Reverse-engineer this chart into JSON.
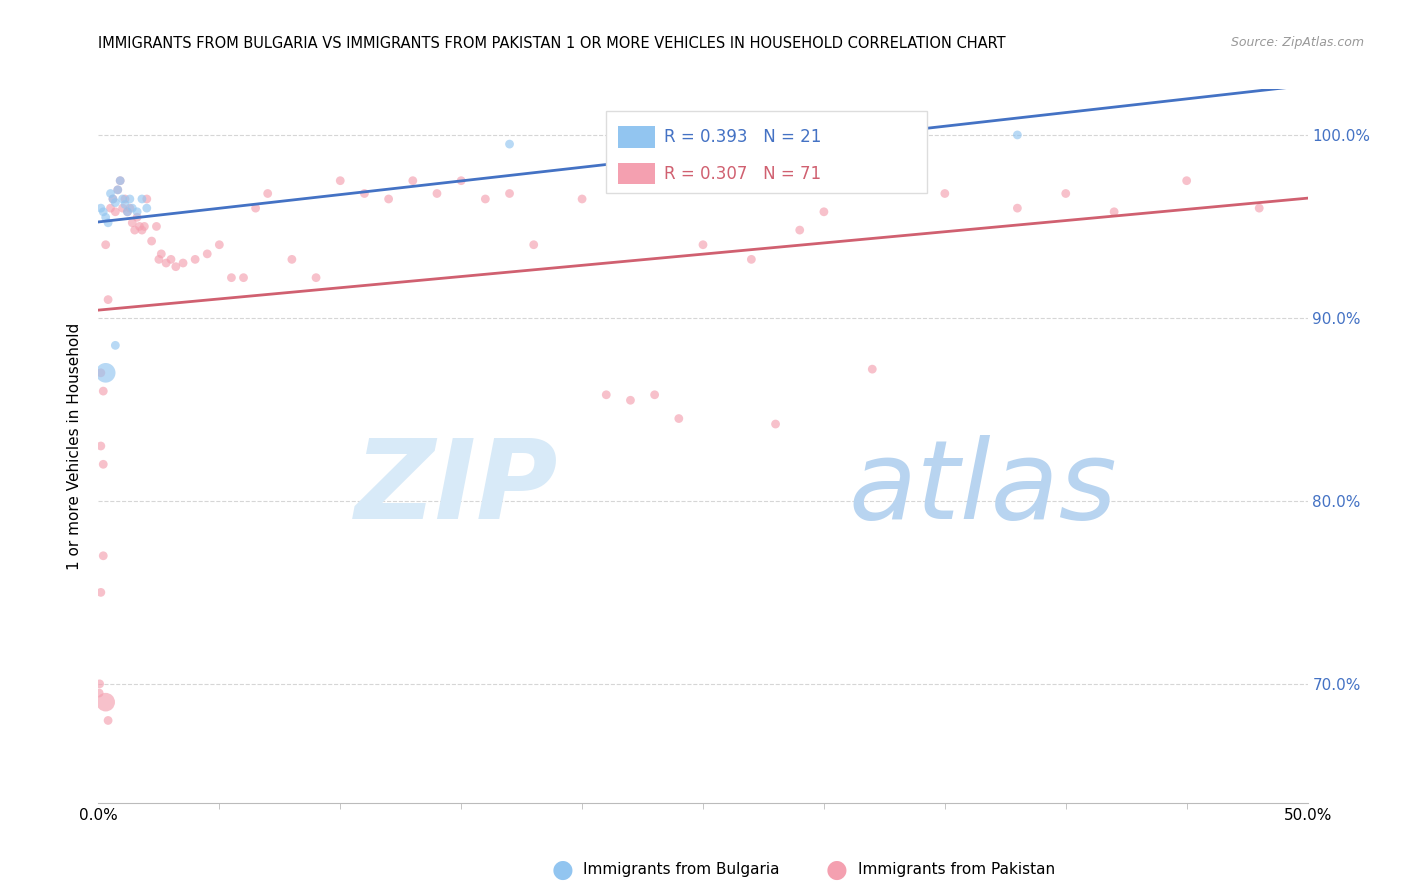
{
  "title": "IMMIGRANTS FROM BULGARIA VS IMMIGRANTS FROM PAKISTAN 1 OR MORE VEHICLES IN HOUSEHOLD CORRELATION CHART",
  "source": "Source: ZipAtlas.com",
  "ylabel": "1 or more Vehicles in Household",
  "ytick_labels": [
    "100.0%",
    "90.0%",
    "80.0%",
    "70.0%"
  ],
  "ytick_values": [
    1.0,
    0.9,
    0.8,
    0.7
  ],
  "xlim": [
    0.0,
    0.5
  ],
  "ylim": [
    0.635,
    1.025
  ],
  "bulgaria_color": "#92C5F0",
  "pakistan_color": "#F4A0B0",
  "bulgaria_line_color": "#4472C4",
  "pakistan_line_color": "#D06070",
  "legend_bulgaria_label": "Immigrants from Bulgaria",
  "legend_pakistan_label": "Immigrants from Pakistan",
  "R_bulgaria": 0.393,
  "N_bulgaria": 21,
  "R_pakistan": 0.307,
  "N_pakistan": 71,
  "bulgaria_scatter_x": [
    0.001,
    0.002,
    0.003,
    0.004,
    0.005,
    0.006,
    0.007,
    0.008,
    0.009,
    0.01,
    0.011,
    0.012,
    0.013,
    0.014,
    0.016,
    0.018,
    0.02,
    0.17,
    0.38,
    0.003,
    0.007
  ],
  "bulgaria_scatter_y": [
    0.96,
    0.958,
    0.955,
    0.952,
    0.968,
    0.965,
    0.963,
    0.97,
    0.975,
    0.965,
    0.962,
    0.958,
    0.965,
    0.96,
    0.958,
    0.965,
    0.96,
    0.995,
    1.0,
    0.87,
    0.885
  ],
  "bulgaria_scatter_size": [
    40,
    40,
    40,
    40,
    40,
    40,
    40,
    40,
    40,
    40,
    40,
    40,
    40,
    40,
    40,
    40,
    40,
    40,
    40,
    200,
    40
  ],
  "pakistan_scatter_x": [
    0.0003,
    0.0005,
    0.001,
    0.002,
    0.003,
    0.004,
    0.005,
    0.006,
    0.007,
    0.008,
    0.009,
    0.01,
    0.011,
    0.012,
    0.013,
    0.014,
    0.015,
    0.016,
    0.017,
    0.018,
    0.019,
    0.02,
    0.022,
    0.024,
    0.025,
    0.026,
    0.028,
    0.03,
    0.032,
    0.035,
    0.04,
    0.045,
    0.05,
    0.055,
    0.06,
    0.065,
    0.07,
    0.08,
    0.09,
    0.1,
    0.11,
    0.12,
    0.13,
    0.14,
    0.15,
    0.16,
    0.17,
    0.18,
    0.2,
    0.21,
    0.22,
    0.23,
    0.24,
    0.25,
    0.27,
    0.28,
    0.29,
    0.3,
    0.32,
    0.35,
    0.38,
    0.4,
    0.42,
    0.45,
    0.48,
    0.001,
    0.002,
    0.001,
    0.002,
    0.003,
    0.004
  ],
  "pakistan_scatter_y": [
    0.695,
    0.7,
    0.75,
    0.77,
    0.69,
    0.68,
    0.96,
    0.965,
    0.958,
    0.97,
    0.975,
    0.96,
    0.965,
    0.958,
    0.96,
    0.952,
    0.948,
    0.955,
    0.95,
    0.948,
    0.95,
    0.965,
    0.942,
    0.95,
    0.932,
    0.935,
    0.93,
    0.932,
    0.928,
    0.93,
    0.932,
    0.935,
    0.94,
    0.922,
    0.922,
    0.96,
    0.968,
    0.932,
    0.922,
    0.975,
    0.968,
    0.965,
    0.975,
    0.968,
    0.975,
    0.965,
    0.968,
    0.94,
    0.965,
    0.858,
    0.855,
    0.858,
    0.845,
    0.94,
    0.932,
    0.842,
    0.948,
    0.958,
    0.872,
    0.968,
    0.96,
    0.968,
    0.958,
    0.975,
    0.96,
    0.83,
    0.82,
    0.87,
    0.86,
    0.94,
    0.91
  ],
  "pakistan_scatter_size": [
    40,
    40,
    40,
    40,
    180,
    40,
    40,
    40,
    40,
    40,
    40,
    40,
    40,
    40,
    40,
    40,
    40,
    40,
    40,
    40,
    40,
    40,
    40,
    40,
    40,
    40,
    40,
    40,
    40,
    40,
    40,
    40,
    40,
    40,
    40,
    40,
    40,
    40,
    40,
    40,
    40,
    40,
    40,
    40,
    40,
    40,
    40,
    40,
    40,
    40,
    40,
    40,
    40,
    40,
    40,
    40,
    40,
    40,
    40,
    40,
    40,
    40,
    40,
    40,
    40,
    40,
    40,
    40,
    40,
    40,
    40
  ],
  "watermark_zip_color": "#D8EAF8",
  "watermark_atlas_color": "#B8D4F0",
  "background_color": "#FFFFFF",
  "grid_color": "#CCCCCC",
  "grid_linestyle": "--"
}
